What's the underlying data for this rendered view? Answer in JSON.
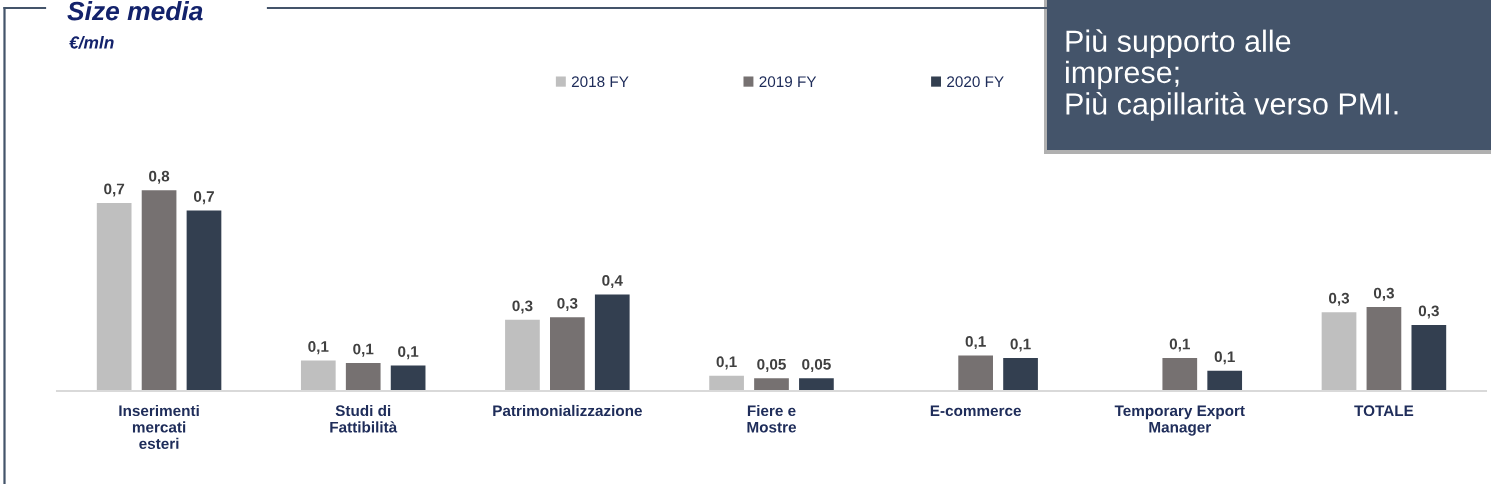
{
  "chart_data": {
    "type": "bar",
    "title": "Size media",
    "subtitle": "€/mln",
    "categories": [
      "Inserimenti\nmercati\nesteri",
      "Studi di\nFattibilità",
      "Patrimonializzazione",
      "Fiere e\nMostre",
      "E-commerce",
      "Temporary Export\nManager",
      "TOTALE"
    ],
    "series": [
      {
        "name": "2018 FY",
        "color": "#bfbfbf",
        "values": [
          0.74,
          0.12,
          0.28,
          0.06,
          null,
          null,
          0.31
        ],
        "value_labels": [
          "0,7",
          "0,1",
          "0,3",
          "0,1",
          null,
          null,
          "0,3"
        ]
      },
      {
        "name": "2019 FY",
        "color": "#767171",
        "values": [
          0.79,
          0.11,
          0.29,
          0.05,
          0.14,
          0.13,
          0.33
        ],
        "value_labels": [
          "0,8",
          "0,1",
          "0,3",
          "0,05",
          "0,1",
          "0,1",
          "0,3"
        ]
      },
      {
        "name": "2020 FY",
        "color": "#333f50",
        "values": [
          0.71,
          0.1,
          0.38,
          0.05,
          0.13,
          0.08,
          0.26
        ],
        "value_labels": [
          "0,7",
          "0,1",
          "0,4",
          "0,05",
          "0,1",
          "0,1",
          "0,3"
        ]
      }
    ],
    "legend": "top",
    "annotations": [
      "Più supporto alle\nimprese;\nPiù capillarità verso PMI."
    ]
  }
}
